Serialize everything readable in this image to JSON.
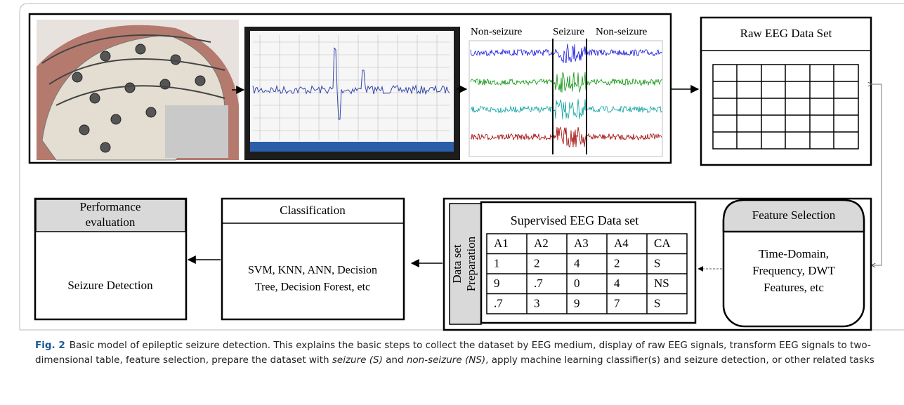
{
  "figure": {
    "eeg_labels": [
      "Non-seizure",
      "Seizure",
      "Non-seizure"
    ],
    "raw_data": {
      "title": "Raw EEG Data Set"
    },
    "feature_selection": {
      "title": "Feature Selection",
      "text": [
        "Time-Domain,",
        "Frequency, DWT",
        "Features, etc"
      ]
    },
    "preparation": {
      "label": [
        "Data set",
        "Preparation"
      ],
      "table": {
        "title": "Supervised EEG Data set",
        "rows": [
          [
            "A1",
            "A2",
            "A3",
            "A4",
            "CA"
          ],
          [
            "1",
            "2",
            "4",
            "2",
            "S"
          ],
          [
            "9",
            ".7",
            "0",
            "4",
            "NS"
          ],
          [
            ".7",
            "3",
            "9",
            "7",
            "S"
          ]
        ]
      }
    },
    "classification": {
      "title": "Classification",
      "text": [
        "SVM, KNN, ANN, Decision",
        "Tree, Decision Forest, etc"
      ]
    },
    "performance": {
      "title": [
        "Performance",
        "evaluation"
      ],
      "text": "Seizure Detection"
    }
  },
  "caption": {
    "label": "Fig. 2",
    "segments": [
      "Basic model of epileptic seizure detection. This explains the basic steps to collect the dataset by EEG medium, display of raw EEG signals, transform EEG signals to two-dimensional table, feature selection, prepare the dataset with ",
      "seizure (S)",
      " and ",
      "non-seizure (NS)",
      ", apply machine learning classifier(s) and seizure detection, or other related tasks"
    ]
  }
}
